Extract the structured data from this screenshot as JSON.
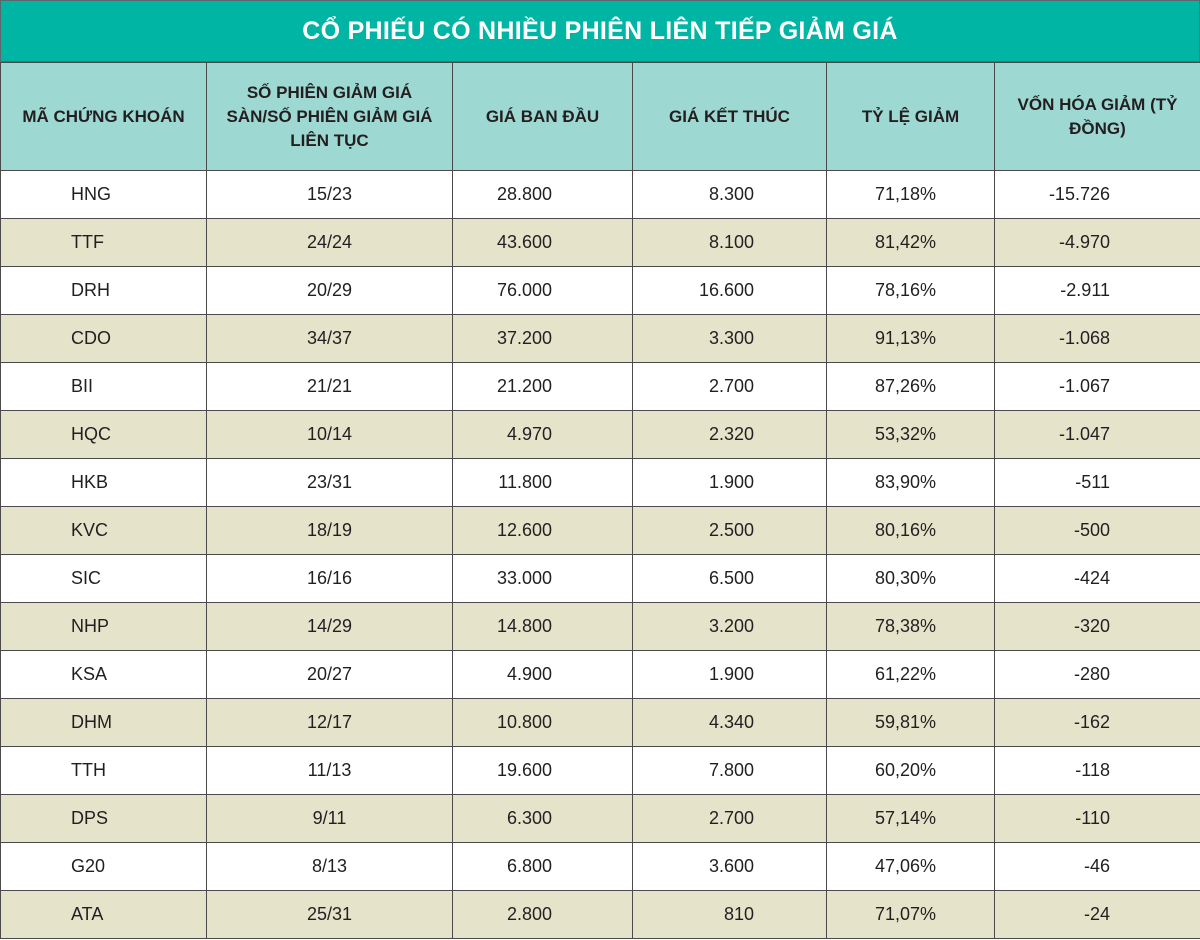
{
  "title": "CỔ PHIẾU CÓ NHIỀU PHIÊN LIÊN TIẾP GIẢM GIÁ",
  "headers": {
    "code": "MÃ CHỨNG KHOÁN",
    "sessions": "SỐ PHIÊN GIẢM GIÁ SÀN/SỐ PHIÊN GIẢM GIÁ LIÊN TỤC",
    "open_price": "GIÁ BAN ĐẦU",
    "close_price": "GIÁ KẾT THÚC",
    "decline_rate": "TỶ LỆ GIẢM",
    "cap_decline": "VỐN HÓA GIẢM (TỶ ĐỒNG)"
  },
  "rows": [
    {
      "code": "HNG",
      "sessions": "15/23",
      "open": "28.800",
      "close": "8.300",
      "rate": "71,18%",
      "cap": "-15.726"
    },
    {
      "code": "TTF",
      "sessions": "24/24",
      "open": "43.600",
      "close": "8.100",
      "rate": "81,42%",
      "cap": "-4.970"
    },
    {
      "code": "DRH",
      "sessions": "20/29",
      "open": "76.000",
      "close": "16.600",
      "rate": "78,16%",
      "cap": "-2.911"
    },
    {
      "code": "CDO",
      "sessions": "34/37",
      "open": "37.200",
      "close": "3.300",
      "rate": "91,13%",
      "cap": "-1.068"
    },
    {
      "code": "BII",
      "sessions": "21/21",
      "open": "21.200",
      "close": "2.700",
      "rate": "87,26%",
      "cap": "-1.067"
    },
    {
      "code": "HQC",
      "sessions": "10/14",
      "open": "4.970",
      "close": "2.320",
      "rate": "53,32%",
      "cap": "-1.047"
    },
    {
      "code": "HKB",
      "sessions": "23/31",
      "open": "11.800",
      "close": "1.900",
      "rate": "83,90%",
      "cap": "-511"
    },
    {
      "code": "KVC",
      "sessions": "18/19",
      "open": "12.600",
      "close": "2.500",
      "rate": "80,16%",
      "cap": "-500"
    },
    {
      "code": "SIC",
      "sessions": "16/16",
      "open": "33.000",
      "close": "6.500",
      "rate": "80,30%",
      "cap": "-424"
    },
    {
      "code": "NHP",
      "sessions": "14/29",
      "open": "14.800",
      "close": "3.200",
      "rate": "78,38%",
      "cap": "-320"
    },
    {
      "code": "KSA",
      "sessions": "20/27",
      "open": "4.900",
      "close": "1.900",
      "rate": "61,22%",
      "cap": "-280"
    },
    {
      "code": "DHM",
      "sessions": "12/17",
      "open": "10.800",
      "close": "4.340",
      "rate": "59,81%",
      "cap": "-162"
    },
    {
      "code": "TTH",
      "sessions": "11/13",
      "open": "19.600",
      "close": "7.800",
      "rate": "60,20%",
      "cap": "-118"
    },
    {
      "code": "DPS",
      "sessions": "9/11",
      "open": "6.300",
      "close": "2.700",
      "rate": "57,14%",
      "cap": "-110"
    },
    {
      "code": "G20",
      "sessions": "8/13",
      "open": "6.800",
      "close": "3.600",
      "rate": "47,06%",
      "cap": "-46"
    },
    {
      "code": "ATA",
      "sessions": "25/31",
      "open": "2.800",
      "close": "810",
      "rate": "71,07%",
      "cap": "-24"
    }
  ]
}
